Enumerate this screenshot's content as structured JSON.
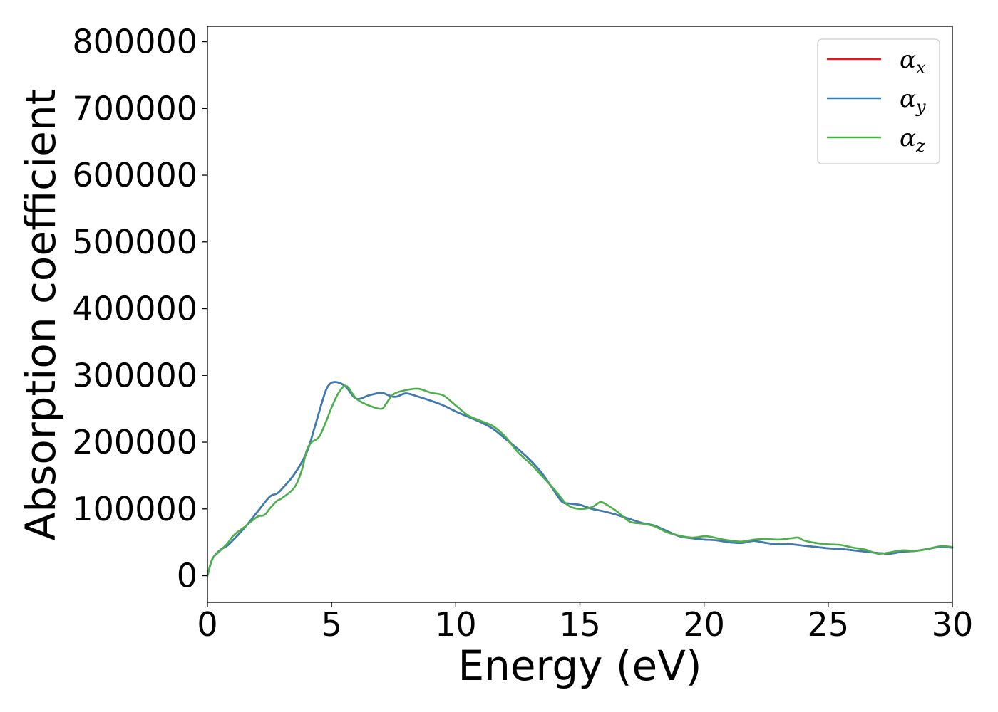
{
  "chart_data": {
    "type": "line",
    "title": "",
    "xlabel": "Energy (eV)",
    "ylabel": "Absorption coefficient",
    "xlim": [
      0,
      30
    ],
    "ylim": [
      -40000,
      823000
    ],
    "xticks": [
      0,
      5,
      10,
      15,
      20,
      25,
      30
    ],
    "xtick_labels": [
      "0",
      "5",
      "10",
      "15",
      "20",
      "25",
      "30"
    ],
    "yticks": [
      0,
      100000,
      200000,
      300000,
      400000,
      500000,
      600000,
      700000,
      800000
    ],
    "ytick_labels": [
      "0",
      "100000",
      "200000",
      "300000",
      "400000",
      "500000",
      "600000",
      "700000",
      "800000"
    ],
    "grid": false,
    "legend_position": "top-right",
    "series": [
      {
        "name": "αx",
        "legend_base": "α",
        "legend_sub": "x",
        "color": "#e41a1c",
        "x": [
          0,
          0.2,
          0.5,
          0.8,
          1.0,
          1.5,
          2.0,
          2.5,
          2.8,
          3.0,
          3.5,
          4.0,
          4.3,
          4.6,
          4.8,
          5.0,
          5.3,
          5.6,
          6.0,
          6.5,
          7.0,
          7.3,
          7.6,
          8.0,
          8.5,
          9.0,
          9.5,
          10.0,
          10.5,
          11.0,
          11.5,
          12.0,
          12.5,
          13.0,
          13.5,
          14.0,
          14.3,
          14.6,
          15.0,
          15.5,
          16.0,
          16.5,
          17.0,
          17.5,
          18.0,
          18.5,
          19.0,
          19.5,
          20.0,
          20.5,
          21.0,
          21.5,
          22.0,
          22.5,
          23.0,
          23.5,
          24.0,
          24.5,
          25.0,
          25.5,
          26.0,
          26.5,
          27.0,
          27.5,
          28.0,
          28.5,
          29.0,
          29.5,
          30.0
        ],
        "values": [
          0,
          25000,
          38000,
          45000,
          52000,
          72000,
          95000,
          118000,
          123000,
          130000,
          152000,
          185000,
          220000,
          258000,
          280000,
          289000,
          289000,
          282000,
          265000,
          270000,
          274000,
          270000,
          268000,
          273000,
          268000,
          262000,
          255000,
          246000,
          238000,
          230000,
          220000,
          205000,
          190000,
          173000,
          152000,
          125000,
          110000,
          108000,
          106000,
          100000,
          96000,
          91000,
          85000,
          79000,
          75000,
          67000,
          59000,
          56000,
          54000,
          53000,
          50000,
          49000,
          52000,
          49000,
          47000,
          47000,
          45000,
          43000,
          41000,
          40000,
          38000,
          36000,
          34000,
          33000,
          36000,
          37000,
          40000,
          43000,
          42000
        ]
      },
      {
        "name": "αy",
        "legend_base": "α",
        "legend_sub": "y",
        "color": "#377eb8",
        "x": [
          0,
          0.2,
          0.5,
          0.8,
          1.0,
          1.5,
          2.0,
          2.5,
          2.8,
          3.0,
          3.5,
          4.0,
          4.3,
          4.6,
          4.8,
          5.0,
          5.3,
          5.6,
          6.0,
          6.5,
          7.0,
          7.3,
          7.6,
          8.0,
          8.5,
          9.0,
          9.5,
          10.0,
          10.5,
          11.0,
          11.5,
          12.0,
          12.5,
          13.0,
          13.5,
          14.0,
          14.3,
          14.6,
          15.0,
          15.5,
          16.0,
          16.5,
          17.0,
          17.5,
          18.0,
          18.5,
          19.0,
          19.5,
          20.0,
          20.5,
          21.0,
          21.5,
          22.0,
          22.5,
          23.0,
          23.5,
          24.0,
          24.5,
          25.0,
          25.5,
          26.0,
          26.5,
          27.0,
          27.5,
          28.0,
          28.5,
          29.0,
          29.5,
          30.0
        ],
        "values": [
          0,
          25000,
          38000,
          45000,
          52000,
          72000,
          95000,
          118000,
          123000,
          130000,
          152000,
          185000,
          220000,
          258000,
          280000,
          289000,
          289000,
          282000,
          265000,
          270000,
          274000,
          270000,
          268000,
          273000,
          268000,
          262000,
          255000,
          246000,
          238000,
          230000,
          220000,
          205000,
          190000,
          173000,
          152000,
          125000,
          110000,
          108000,
          106000,
          100000,
          96000,
          91000,
          85000,
          79000,
          75000,
          67000,
          59000,
          56000,
          54000,
          53000,
          50000,
          49000,
          52000,
          49000,
          47000,
          47000,
          45000,
          43000,
          41000,
          40000,
          38000,
          36000,
          34000,
          33000,
          36000,
          37000,
          40000,
          43000,
          42000
        ]
      },
      {
        "name": "αz",
        "legend_base": "α",
        "legend_sub": "z",
        "color": "#4daf4a",
        "x": [
          0,
          0.2,
          0.5,
          0.8,
          1.0,
          1.2,
          1.5,
          2.0,
          2.3,
          2.5,
          2.8,
          3.0,
          3.5,
          3.8,
          4.0,
          4.2,
          4.5,
          4.8,
          5.0,
          5.3,
          5.6,
          6.0,
          6.5,
          7.0,
          7.2,
          7.5,
          8.0,
          8.5,
          9.0,
          9.5,
          10.0,
          10.5,
          11.0,
          11.5,
          12.0,
          12.5,
          13.0,
          13.5,
          14.0,
          14.5,
          15.0,
          15.5,
          15.8,
          16.0,
          16.5,
          17.0,
          17.5,
          18.0,
          18.5,
          19.0,
          19.5,
          20.0,
          20.3,
          20.8,
          21.5,
          22.0,
          22.5,
          23.0,
          23.5,
          23.8,
          24.0,
          24.5,
          25.0,
          25.5,
          26.0,
          26.5,
          27.0,
          27.5,
          28.0,
          28.5,
          29.0,
          29.5,
          30.0
        ],
        "values": [
          0,
          25000,
          37000,
          48000,
          58000,
          65000,
          73000,
          88000,
          91000,
          100000,
          112000,
          116000,
          132000,
          158000,
          188000,
          200000,
          208000,
          233000,
          252000,
          275000,
          284000,
          265000,
          255000,
          250000,
          258000,
          272000,
          278000,
          280000,
          274000,
          270000,
          255000,
          240000,
          232000,
          224000,
          208000,
          185000,
          168000,
          148000,
          128000,
          106000,
          100000,
          103000,
          110000,
          108000,
          96000,
          81000,
          78000,
          74000,
          65000,
          60000,
          57000,
          59000,
          58000,
          54000,
          51000,
          54000,
          55000,
          54000,
          56000,
          57000,
          53000,
          49000,
          47000,
          46000,
          42000,
          39000,
          33000,
          35000,
          38000,
          37000,
          40000,
          44000,
          43000
        ]
      }
    ]
  }
}
